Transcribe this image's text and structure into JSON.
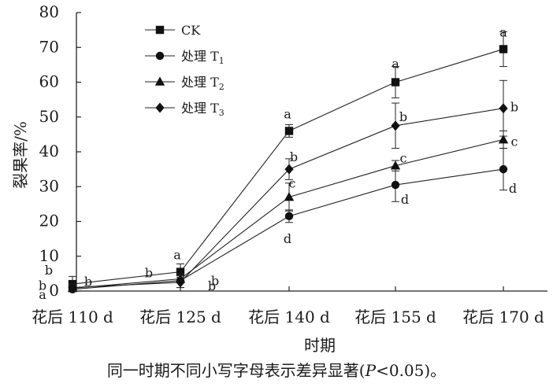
{
  "chart_data": {
    "type": "line",
    "xlabel": "时期",
    "ylabel": "裂果率/%",
    "categories": [
      "花后 110 d",
      "花后 125 d",
      "花后 140 d",
      "花后 155 d",
      "花后 170 d"
    ],
    "ylim": [
      0,
      80
    ],
    "yticks": [
      "0",
      "10",
      "20",
      "30",
      "40",
      "50",
      "60",
      "70",
      "80"
    ],
    "grid": false,
    "legend_position": "top-left",
    "series": [
      {
        "name": "CK",
        "name_base": "CK",
        "name_sub": "",
        "marker": "square",
        "values": [
          2.0,
          5.5,
          46.0,
          60.0,
          69.5
        ],
        "errors": [
          2.2,
          2.3,
          1.8,
          4.5,
          5.0
        ],
        "letters": [
          "b",
          "a",
          "a",
          "a",
          "a"
        ]
      },
      {
        "name": "处理 T1",
        "name_base": "处理 T",
        "name_sub": "1",
        "marker": "circle",
        "values": [
          0.5,
          3.0,
          21.5,
          30.5,
          35.0
        ],
        "errors": [
          0.5,
          2.0,
          1.8,
          4.8,
          6.0
        ],
        "letters": [
          "a",
          "b",
          "d",
          "d",
          "d"
        ]
      },
      {
        "name": "处理 T2",
        "name_base": "处理 T",
        "name_sub": "2",
        "marker": "triangle",
        "values": [
          0.8,
          3.5,
          27.0,
          36.0,
          43.5
        ],
        "errors": [
          0.8,
          1.0,
          4.0,
          1.5,
          2.5
        ],
        "letters": [
          "b",
          "b",
          "c",
          "c",
          "c"
        ]
      },
      {
        "name": "处理 T3",
        "name_base": "处理 T",
        "name_sub": "3",
        "marker": "diamond",
        "values": [
          1.0,
          2.5,
          35.0,
          47.5,
          52.5
        ],
        "errors": [
          1.0,
          1.5,
          3.0,
          6.5,
          8.0
        ],
        "letters": [
          "b",
          "b",
          "b",
          "b",
          "b"
        ]
      }
    ]
  },
  "caption": {
    "prefix": "同一时期不同小写字母表示差异显著(",
    "p": "P",
    "suffix": "<0.05)。"
  }
}
